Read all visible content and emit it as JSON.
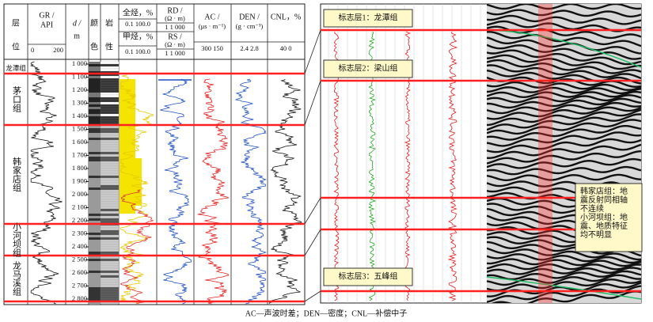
{
  "log_panel": {
    "headers": {
      "layer": "层",
      "position": "位",
      "gr": "GR /",
      "gr_unit": "API",
      "gr_min": "0",
      "gr_max": "200",
      "depth": "d /",
      "depth_unit": "m",
      "color": [
        "颜",
        "色"
      ],
      "lithology": [
        "岩",
        "性"
      ],
      "total_gas": "全烃，%",
      "total_gas_scale": "0.1 100.0",
      "methane": "甲烃，%",
      "methane_scale": "0.1 100.0",
      "rd": "RD /",
      "rd_unit": "(Ω · m)",
      "rd_scale": "1     1 000",
      "rs": "RS /",
      "rs_unit": "(Ω · m)",
      "rs_scale": "1     1 000",
      "ac": "AC /",
      "ac_unit": "(μs · m⁻¹)",
      "ac_scale": "300  150",
      "den": "DEN /",
      "den_unit": "(g · cm⁻³)",
      "den_scale": "2.4    2.8",
      "cnl": "CNL，%",
      "cnl_scale": "40      0"
    },
    "depths": [
      "1 000",
      "1 100",
      "1 200",
      "1 300",
      "1 400",
      "1 500",
      "1 600",
      "1 700",
      "1 800",
      "1 900",
      "2 000",
      "2 100",
      "2 200",
      "2 300",
      "2 400",
      "2 500",
      "2 600",
      "2 700",
      "2 800"
    ],
    "formations": [
      "龙潭组",
      "茅口组",
      "韩家店组",
      "小河坝组",
      "龙马溪组"
    ]
  },
  "seismic_panel": {
    "markers": [
      "标志层1：龙潭组",
      "标志层2：梁山组",
      "标志层3：五峰组"
    ],
    "note": [
      "韩家店组：地震反射同相轴不连续",
      "小河坝组：地震、地质特征均不明显"
    ]
  },
  "caption": "AC—声波时差；DEN—密度；CNL—补偿中子"
}
